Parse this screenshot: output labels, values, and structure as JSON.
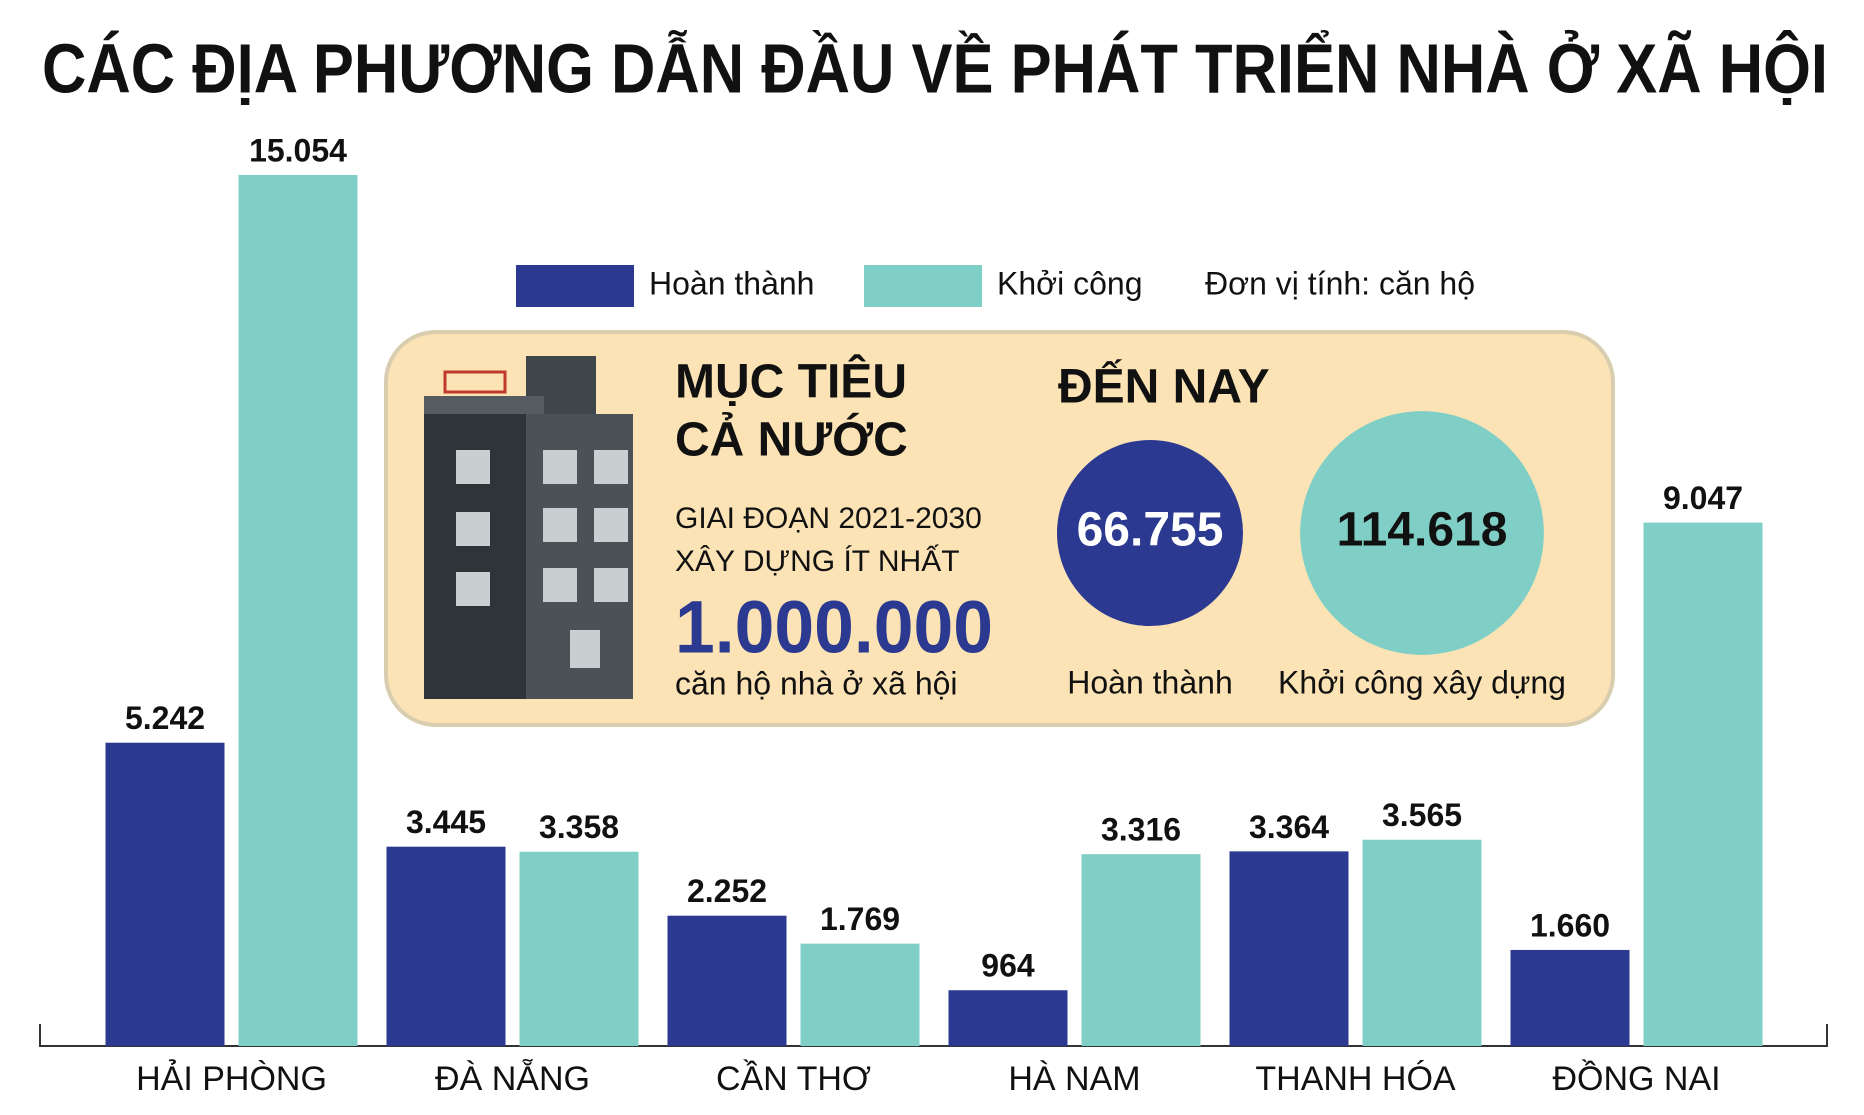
{
  "chart_data": {
    "type": "bar",
    "title": "CÁC ĐỊA PHƯƠNG DẪN ĐẦU VỀ PHÁT TRIỂN NHÀ Ở XÃ HỘI",
    "categories": [
      "HẢI PHÒNG",
      "ĐÀ NẴNG",
      "CẦN THƠ",
      "HÀ NAM",
      "THANH HÓA",
      "ĐỒNG NAI"
    ],
    "series": [
      {
        "name": "Hoàn thành",
        "color": "#2b3990",
        "values": [
          5242,
          3445,
          2252,
          964,
          3364,
          1660
        ],
        "value_labels": [
          "5.242",
          "3.445",
          "2.252",
          "964",
          "3.364",
          "1.660"
        ]
      },
      {
        "name": "Khởi công",
        "color": "#7fcfc6",
        "values": [
          15054,
          3358,
          1769,
          3316,
          3565,
          9047
        ],
        "value_labels": [
          "15.054",
          "3.358",
          "1.769",
          "3.316",
          "3.565",
          "9.047"
        ]
      }
    ],
    "unit_note": "Đơn vị tính: căn hộ",
    "target": {
      "heading": [
        "MỤC TIÊU",
        "CẢ NƯỚC"
      ],
      "lines": [
        "GIAI ĐOẠN 2021-2030",
        "XÂY DỰNG ÍT NHẤT"
      ],
      "amount": "1.000.000",
      "caption": "căn hộ nhà ở xã hội"
    },
    "progress": {
      "heading": "ĐẾN NAY",
      "values": [
        66755,
        114618
      ],
      "value_labels": [
        "66.755",
        "114.618"
      ],
      "labels": [
        "Hoàn thành",
        "Khởi công xây dựng"
      ],
      "colors": [
        "#2b3990",
        "#7fcfc6"
      ]
    }
  }
}
